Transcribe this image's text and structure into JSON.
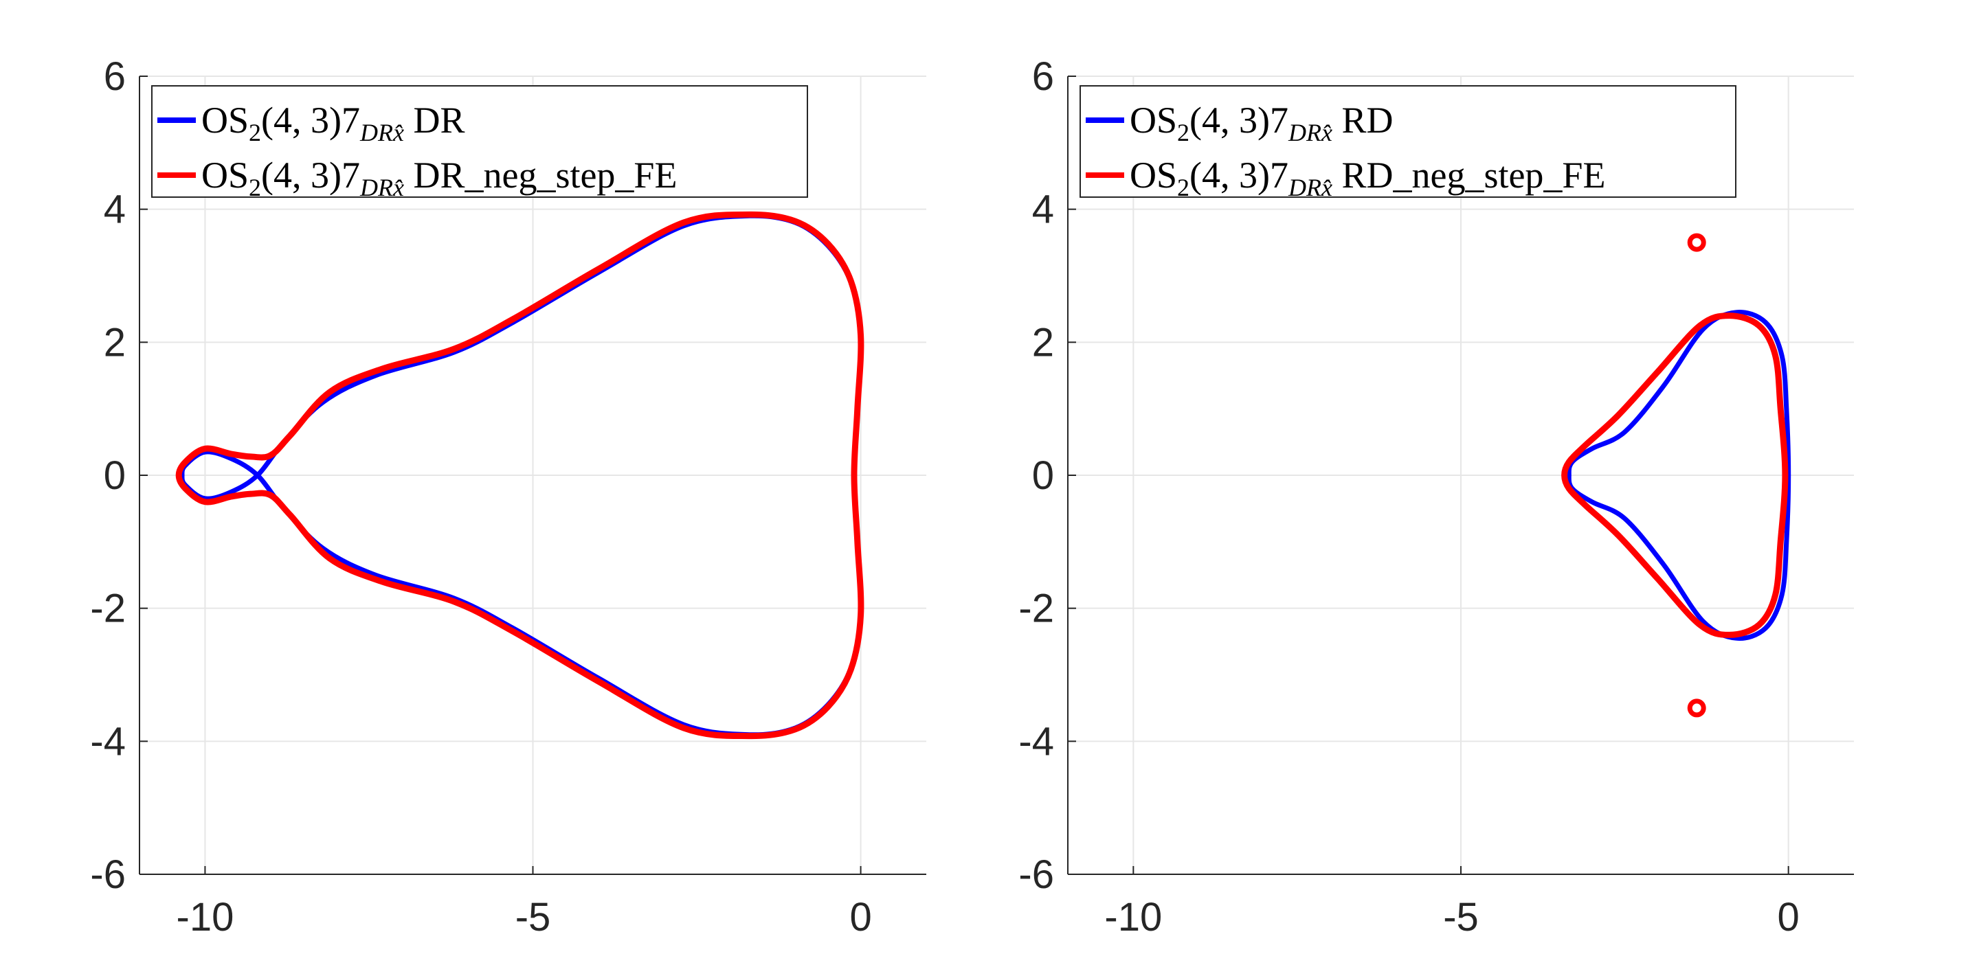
{
  "chart_data": [
    {
      "type": "line",
      "title": "",
      "xlabel": "",
      "ylabel": "",
      "xlim": [
        -11,
        1
      ],
      "ylim": [
        -6,
        6
      ],
      "xticks": [
        -10,
        -5,
        0
      ],
      "yticks": [
        -6,
        -4,
        -2,
        0,
        2,
        4,
        6
      ],
      "xtick_labels": [
        "-10",
        "-5",
        "0"
      ],
      "ytick_labels": [
        "-6",
        "-4",
        "-2",
        "0",
        "2",
        "4",
        "6"
      ],
      "grid": true,
      "legend_position": "top-left",
      "series": [
        {
          "name": "OS2(4,3)7DRx̂ DR",
          "legend": {
            "a": "OS",
            "b": "2",
            "c": "(4, 3)7",
            "d": "DRx̂",
            "e": " DR"
          },
          "color": "#0000ff",
          "points": [
            [
              -1.7,
              3.9
            ],
            [
              -1.0,
              3.8
            ],
            [
              -0.5,
              3.45
            ],
            [
              -0.15,
              2.9
            ],
            [
              0.0,
              2.1
            ],
            [
              -0.05,
              1.0
            ],
            [
              -0.1,
              0.0
            ],
            [
              -0.05,
              -1.0
            ],
            [
              0.0,
              -2.1
            ],
            [
              -0.15,
              -2.9
            ],
            [
              -0.5,
              -3.45
            ],
            [
              -1.0,
              -3.8
            ],
            [
              -1.7,
              -3.9
            ],
            [
              -2.7,
              -3.75
            ],
            [
              -4.0,
              -3.05
            ],
            [
              -5.3,
              -2.3
            ],
            [
              -6.2,
              -1.85
            ],
            [
              -7.4,
              -1.5
            ],
            [
              -8.2,
              -1.1
            ],
            [
              -8.8,
              -0.5
            ],
            [
              -9.2,
              0.0
            ],
            [
              -9.6,
              0.25
            ],
            [
              -10.0,
              0.35
            ],
            [
              -10.3,
              0.15
            ],
            [
              -10.35,
              0.0
            ],
            [
              -10.3,
              -0.15
            ],
            [
              -10.0,
              -0.35
            ],
            [
              -9.6,
              -0.25
            ],
            [
              -9.2,
              0.0
            ],
            [
              -8.8,
              0.5
            ],
            [
              -8.2,
              1.1
            ],
            [
              -7.4,
              1.5
            ],
            [
              -6.2,
              1.85
            ],
            [
              -5.3,
              2.3
            ],
            [
              -4.0,
              3.05
            ],
            [
              -2.7,
              3.75
            ],
            [
              -1.7,
              3.9
            ]
          ]
        },
        {
          "name": "OS2(4,3)7DRx̂ DR_neg_step_FE",
          "legend": {
            "a": "OS",
            "b": "2",
            "c": "(4, 3)7",
            "d": "DRx̂",
            "e": " DR_neg_step_FE"
          },
          "color": "#ff0000",
          "points": [
            [
              -1.7,
              3.92
            ],
            [
              -1.0,
              3.82
            ],
            [
              -0.5,
              3.48
            ],
            [
              -0.15,
              2.92
            ],
            [
              0.0,
              2.1
            ],
            [
              -0.05,
              1.0
            ],
            [
              -0.1,
              0.0
            ],
            [
              -0.05,
              -1.0
            ],
            [
              0.0,
              -2.1
            ],
            [
              -0.15,
              -2.92
            ],
            [
              -0.5,
              -3.48
            ],
            [
              -1.0,
              -3.82
            ],
            [
              -1.7,
              -3.92
            ],
            [
              -2.7,
              -3.8
            ],
            [
              -4.0,
              -3.1
            ],
            [
              -5.3,
              -2.35
            ],
            [
              -6.2,
              -1.9
            ],
            [
              -7.3,
              -1.6
            ],
            [
              -8.1,
              -1.25
            ],
            [
              -8.7,
              -0.6
            ],
            [
              -9.0,
              -0.3
            ],
            [
              -9.3,
              -0.28
            ],
            [
              -9.6,
              -0.32
            ],
            [
              -10.0,
              -0.4
            ],
            [
              -10.3,
              -0.2
            ],
            [
              -10.4,
              0.0
            ],
            [
              -10.3,
              0.2
            ],
            [
              -10.0,
              0.4
            ],
            [
              -9.6,
              0.32
            ],
            [
              -9.3,
              0.28
            ],
            [
              -9.0,
              0.3
            ],
            [
              -8.7,
              0.6
            ],
            [
              -8.1,
              1.25
            ],
            [
              -7.3,
              1.6
            ],
            [
              -6.2,
              1.9
            ],
            [
              -5.3,
              2.35
            ],
            [
              -4.0,
              3.1
            ],
            [
              -2.7,
              3.8
            ],
            [
              -1.7,
              3.92
            ]
          ]
        }
      ]
    },
    {
      "type": "line",
      "title": "",
      "xlabel": "",
      "ylabel": "",
      "xlim": [
        -11,
        1
      ],
      "ylim": [
        -6,
        6
      ],
      "xticks": [
        -10,
        -5,
        0
      ],
      "yticks": [
        -6,
        -4,
        -2,
        0,
        2,
        4,
        6
      ],
      "xtick_labels": [
        "-10",
        "-5",
        "0"
      ],
      "ytick_labels": [
        "-6",
        "-4",
        "-2",
        "0",
        "2",
        "4",
        "6"
      ],
      "grid": true,
      "legend_position": "top-left",
      "series": [
        {
          "name": "OS2(4,3)7DRx̂ RD",
          "legend": {
            "a": "OS",
            "b": "2",
            "c": "(4, 3)7",
            "d": "DRx̂",
            "e": " RD"
          },
          "color": "#0000ff",
          "points": [
            [
              -0.8,
              2.45
            ],
            [
              -0.35,
              2.3
            ],
            [
              -0.1,
              1.8
            ],
            [
              -0.03,
              1.0
            ],
            [
              0.0,
              0.0
            ],
            [
              -0.03,
              -1.0
            ],
            [
              -0.1,
              -1.8
            ],
            [
              -0.35,
              -2.3
            ],
            [
              -0.8,
              -2.45
            ],
            [
              -1.3,
              -2.2
            ],
            [
              -1.9,
              -1.35
            ],
            [
              -2.5,
              -0.65
            ],
            [
              -3.0,
              -0.4
            ],
            [
              -3.3,
              -0.2
            ],
            [
              -3.35,
              0.0
            ],
            [
              -3.3,
              0.2
            ],
            [
              -3.0,
              0.4
            ],
            [
              -2.5,
              0.65
            ],
            [
              -1.9,
              1.35
            ],
            [
              -1.3,
              2.2
            ],
            [
              -0.8,
              2.45
            ]
          ]
        },
        {
          "name": "OS2(4,3)7DRx̂ RD_neg_step_FE",
          "legend": {
            "a": "OS",
            "b": "2",
            "c": "(4, 3)7",
            "d": "DRx̂",
            "e": " RD_neg_step_FE"
          },
          "color": "#ff0000",
          "points": [
            [
              -0.9,
              2.4
            ],
            [
              -0.45,
              2.25
            ],
            [
              -0.2,
              1.8
            ],
            [
              -0.12,
              1.0
            ],
            [
              -0.05,
              0.0
            ],
            [
              -0.12,
              -1.0
            ],
            [
              -0.2,
              -1.8
            ],
            [
              -0.45,
              -2.25
            ],
            [
              -0.9,
              -2.4
            ],
            [
              -1.35,
              -2.25
            ],
            [
              -2.0,
              -1.55
            ],
            [
              -2.6,
              -0.9
            ],
            [
              -3.1,
              -0.45
            ],
            [
              -3.35,
              -0.2
            ],
            [
              -3.42,
              0.0
            ],
            [
              -3.35,
              0.2
            ],
            [
              -3.1,
              0.45
            ],
            [
              -2.6,
              0.9
            ],
            [
              -2.0,
              1.55
            ],
            [
              -1.35,
              2.25
            ],
            [
              -0.9,
              2.4
            ]
          ],
          "extra_loops": [
            [
              -1.4,
              3.5
            ],
            [
              -1.4,
              -3.5
            ]
          ]
        }
      ]
    }
  ]
}
